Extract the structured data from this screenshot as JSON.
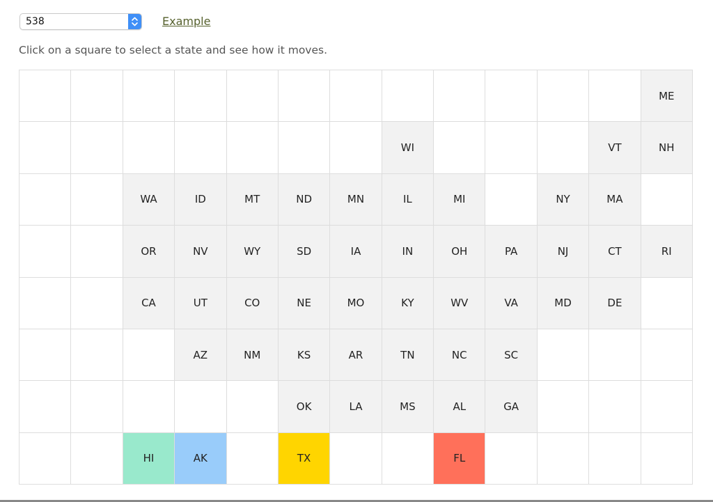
{
  "controls": {
    "layout_select_value": "538",
    "example_link_label": "Example"
  },
  "instructions": "Click on a square to select a state and see how it moves.",
  "grid": {
    "columns": 13,
    "rows": 8,
    "states": [
      {
        "label": "ME",
        "col": 12,
        "row": 0
      },
      {
        "label": "WI",
        "col": 7,
        "row": 1
      },
      {
        "label": "VT",
        "col": 11,
        "row": 1
      },
      {
        "label": "NH",
        "col": 12,
        "row": 1
      },
      {
        "label": "WA",
        "col": 2,
        "row": 2
      },
      {
        "label": "ID",
        "col": 3,
        "row": 2
      },
      {
        "label": "MT",
        "col": 4,
        "row": 2
      },
      {
        "label": "ND",
        "col": 5,
        "row": 2
      },
      {
        "label": "MN",
        "col": 6,
        "row": 2
      },
      {
        "label": "IL",
        "col": 7,
        "row": 2
      },
      {
        "label": "MI",
        "col": 8,
        "row": 2
      },
      {
        "label": "NY",
        "col": 10,
        "row": 2
      },
      {
        "label": "MA",
        "col": 11,
        "row": 2
      },
      {
        "label": "OR",
        "col": 2,
        "row": 3
      },
      {
        "label": "NV",
        "col": 3,
        "row": 3
      },
      {
        "label": "WY",
        "col": 4,
        "row": 3
      },
      {
        "label": "SD",
        "col": 5,
        "row": 3
      },
      {
        "label": "IA",
        "col": 6,
        "row": 3
      },
      {
        "label": "IN",
        "col": 7,
        "row": 3
      },
      {
        "label": "OH",
        "col": 8,
        "row": 3
      },
      {
        "label": "PA",
        "col": 9,
        "row": 3
      },
      {
        "label": "NJ",
        "col": 10,
        "row": 3
      },
      {
        "label": "CT",
        "col": 11,
        "row": 3
      },
      {
        "label": "RI",
        "col": 12,
        "row": 3
      },
      {
        "label": "CA",
        "col": 2,
        "row": 4
      },
      {
        "label": "UT",
        "col": 3,
        "row": 4
      },
      {
        "label": "CO",
        "col": 4,
        "row": 4
      },
      {
        "label": "NE",
        "col": 5,
        "row": 4
      },
      {
        "label": "MO",
        "col": 6,
        "row": 4
      },
      {
        "label": "KY",
        "col": 7,
        "row": 4
      },
      {
        "label": "WV",
        "col": 8,
        "row": 4
      },
      {
        "label": "VA",
        "col": 9,
        "row": 4
      },
      {
        "label": "MD",
        "col": 10,
        "row": 4
      },
      {
        "label": "DE",
        "col": 11,
        "row": 4
      },
      {
        "label": "AZ",
        "col": 3,
        "row": 5
      },
      {
        "label": "NM",
        "col": 4,
        "row": 5
      },
      {
        "label": "KS",
        "col": 5,
        "row": 5
      },
      {
        "label": "AR",
        "col": 6,
        "row": 5
      },
      {
        "label": "TN",
        "col": 7,
        "row": 5
      },
      {
        "label": "NC",
        "col": 8,
        "row": 5
      },
      {
        "label": "SC",
        "col": 9,
        "row": 5
      },
      {
        "label": "OK",
        "col": 5,
        "row": 6
      },
      {
        "label": "LA",
        "col": 6,
        "row": 6
      },
      {
        "label": "MS",
        "col": 7,
        "row": 6
      },
      {
        "label": "AL",
        "col": 8,
        "row": 6
      },
      {
        "label": "GA",
        "col": 9,
        "row": 6
      },
      {
        "label": "HI",
        "col": 2,
        "row": 7,
        "color": "#99e9cc"
      },
      {
        "label": "AK",
        "col": 3,
        "row": 7,
        "color": "#99ccfa"
      },
      {
        "label": "TX",
        "col": 5,
        "row": 7,
        "color": "#ffd500"
      },
      {
        "label": "FL",
        "col": 8,
        "row": 7,
        "color": "#ff705a"
      }
    ]
  }
}
